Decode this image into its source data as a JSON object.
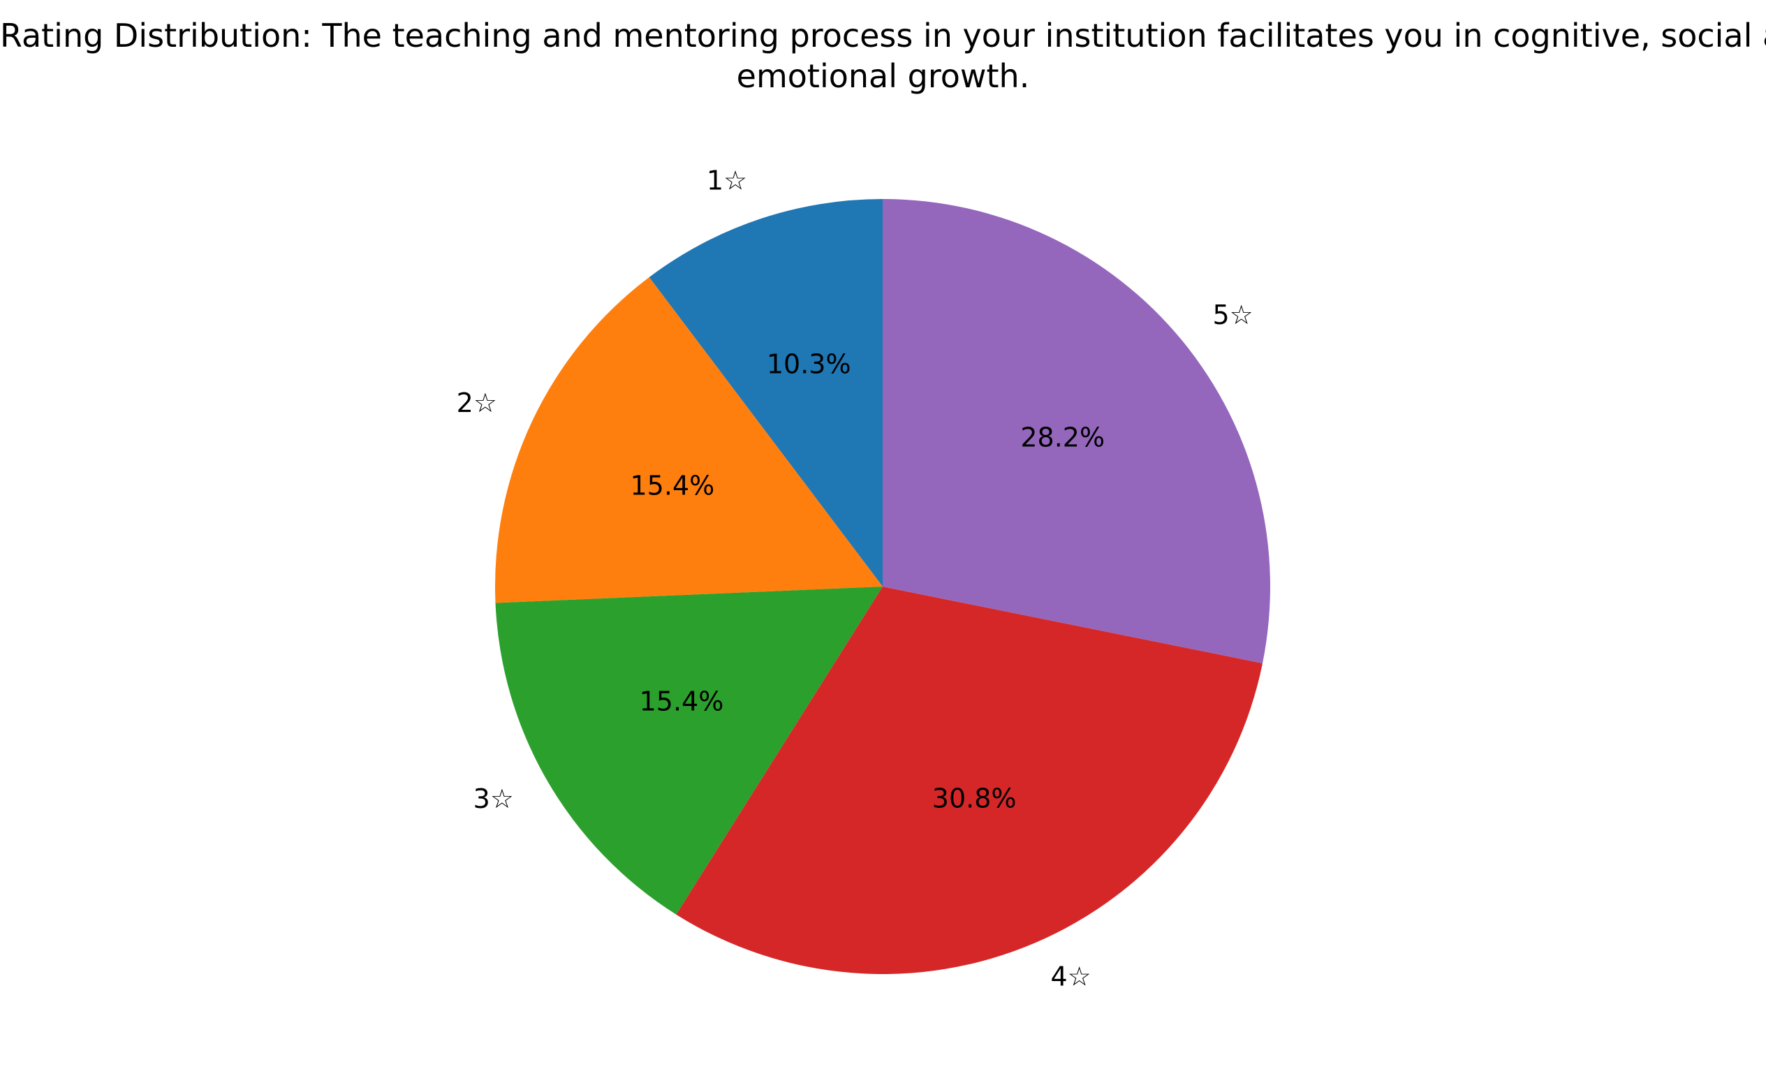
{
  "chart_data": {
    "type": "pie",
    "title_lines": [
      "Rating Distribution: The teaching and mentoring process in your institution facilitates you in cognitive, social and",
      "emotional growth."
    ],
    "start_angle_deg": 90,
    "direction": "counterclockwise",
    "slices": [
      {
        "label": "1☆",
        "value": 10.3,
        "pct_label": "10.3%",
        "color": "#1f77b4"
      },
      {
        "label": "2☆",
        "value": 15.4,
        "pct_label": "15.4%",
        "color": "#ff7f0e"
      },
      {
        "label": "3☆",
        "value": 15.4,
        "pct_label": "15.4%",
        "color": "#2ca02c"
      },
      {
        "label": "4☆",
        "value": 30.8,
        "pct_label": "30.8%",
        "color": "#d62728"
      },
      {
        "label": "5☆",
        "value": 28.2,
        "pct_label": "28.2%",
        "color": "#9467bd"
      }
    ]
  }
}
